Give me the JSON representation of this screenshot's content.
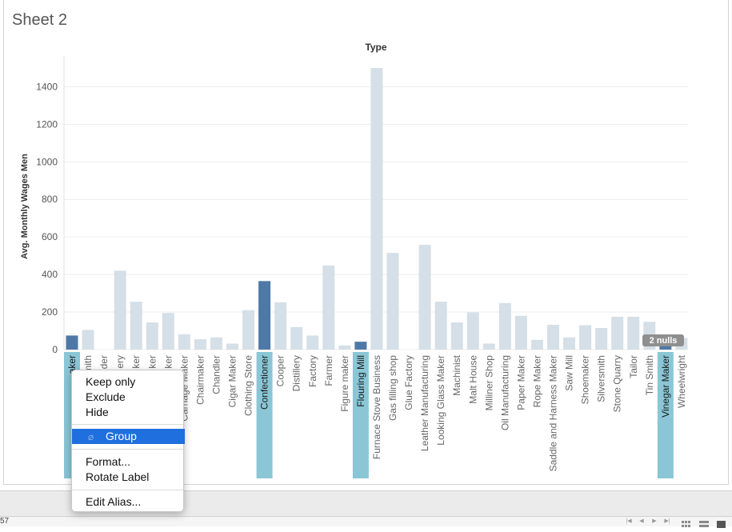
{
  "sheet": {
    "title": "Sheet 2"
  },
  "chart_data": {
    "type": "bar",
    "title": "Type",
    "xlabel": "",
    "ylabel": "Avg. Monthly Wages Men",
    "ylim": [
      0,
      1500
    ],
    "yticks": [
      0,
      200,
      400,
      600,
      800,
      1000,
      1200,
      1400
    ],
    "grid": true,
    "colors": {
      "bar": "#d5dfe7",
      "selected_bar": "#4e79a7",
      "selected_label_bg": "#8ac6d6",
      "null_badge": "#8f8f8f"
    },
    "categories": [
      "Baker",
      "Blacksmith",
      "Bookbinder",
      "Brewery",
      "Brick Maker",
      "Broom Maker",
      "Cabinet Maker",
      "Carriage Maker",
      "Chairmaker",
      "Chandler",
      "Cigar Maker",
      "Clothing Store",
      "Confectioner",
      "Cooper",
      "Distillery",
      "Factory",
      "Farmer",
      "Figure maker",
      "Flouring Mill",
      "Furnace Stove Business",
      "Gas filling shop",
      "Glue Factory",
      "Leather Manufacturing",
      "Looking Glass Maker",
      "Machinist",
      "Malt House",
      "Milliner Shop",
      "Oil Manufacturing",
      "Paper Maker",
      "Rope Maker",
      "Saddle and Harness Maker",
      "Saw Mill",
      "Shoemaker",
      "Silversmith",
      "Stone Quarry",
      "Tailor",
      "Tin Smith",
      "Vinegar Maker",
      "Wheelwright"
    ],
    "label_display": [
      "aker",
      "mith",
      "nder",
      "ery",
      "ker",
      "ker",
      "ker",
      "Carriage Maker",
      "Chairmaker",
      "Chandler",
      "Cigar Maker",
      "Clothing Store",
      "Confectioner",
      "Cooper",
      "Distillery",
      "Factory",
      "Farmer",
      "Figure maker",
      "Flouring Mill",
      "Furnace Stove Business",
      "Gas filling shop",
      "Glue Factory",
      "Leather Manufacturing",
      "Looking Glass Maker",
      "Machinist",
      "Malt House",
      "Milliner Shop",
      "Oil Manufacturing",
      "Paper Maker",
      "Rope Maker",
      "Saddle and Harness Maker",
      "Saw Mill",
      "Shoemaker",
      "Silversmith",
      "Stone Quarry",
      "Tailor",
      "Tin Smith",
      "Vinegar Maker",
      "Wheelwright"
    ],
    "values": [
      75,
      105,
      0,
      420,
      255,
      145,
      195,
      82,
      55,
      65,
      32,
      210,
      365,
      252,
      120,
      75,
      448,
      22,
      42,
      1500,
      515,
      0,
      558,
      255,
      145,
      198,
      32,
      248,
      180,
      52,
      132,
      65,
      130,
      115,
      175,
      175,
      148,
      35,
      62
    ],
    "selected": [
      "Baker",
      "Confectioner",
      "Flouring Mill",
      "Vinegar Maker"
    ],
    "null_badge": "2 nulls"
  },
  "context_menu": {
    "items": [
      {
        "id": "keep-only",
        "label": "Keep only"
      },
      {
        "id": "exclude",
        "label": "Exclude"
      },
      {
        "id": "hide",
        "label": "Hide"
      },
      {
        "id": "group",
        "label": "Group",
        "icon": "paperclip-icon"
      },
      {
        "id": "format",
        "label": "Format..."
      },
      {
        "id": "rotate-label",
        "label": "Rotate Label"
      },
      {
        "id": "edit-alias",
        "label": "Edit Alias..."
      }
    ]
  },
  "statusbar": {
    "count": "57"
  }
}
